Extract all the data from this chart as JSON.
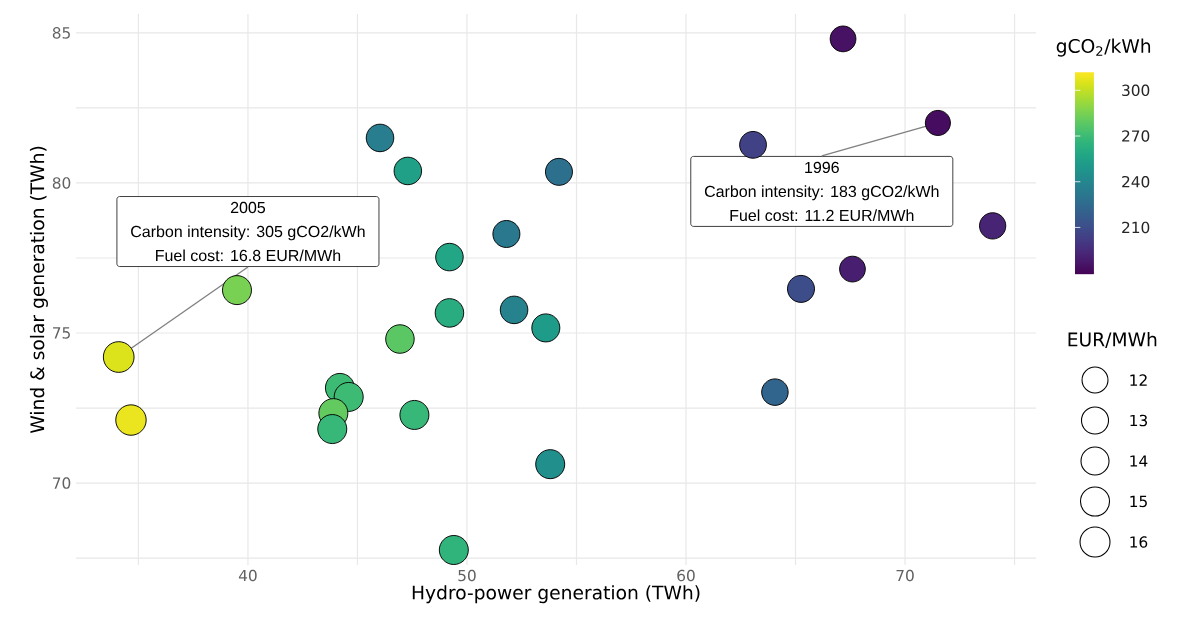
{
  "chart_data": {
    "type": "bubble",
    "xlabel": "Hydro-power generation (TWh)",
    "ylabel": "Wind & solar generation (TWh)",
    "clabel": "gCO$_{2}$/kWh",
    "legend_title": "EUR/MWh",
    "grid": true,
    "marker": "circle",
    "x": [
      34.1,
      34.66,
      39.5,
      46.03,
      47.3,
      54.2,
      51.8,
      49.2,
      49.2,
      52.15,
      53.6,
      46.94,
      44.2,
      44.6,
      43.9,
      43.85,
      47.6,
      53.8,
      49.4,
      67.17,
      71.5,
      63.06,
      74.0,
      67.6,
      65.25,
      64.06
    ],
    "values": [
      74.2,
      72.1,
      76.43,
      81.5,
      80.4,
      80.37,
      78.3,
      77.53,
      75.67,
      75.77,
      75.17,
      74.8,
      73.17,
      72.87,
      72.33,
      71.8,
      72.27,
      70.63,
      67.77,
      84.8,
      82.0,
      81.27,
      78.57,
      77.13,
      76.47,
      73.03
    ],
    "cvalues": [
      305,
      308,
      285,
      235,
      255,
      228,
      232,
      258,
      262,
      238,
      252,
      278,
      270,
      270,
      280,
      268,
      268,
      245,
      266,
      185,
      183,
      205,
      192,
      190,
      210,
      222
    ],
    "sizes": [
      16.8,
      16.5,
      15,
      13.5,
      13.5,
      13,
      13,
      13.5,
      14.5,
      13.5,
      14,
      14.5,
      15,
      15,
      15,
      15,
      15,
      15,
      15,
      11.8,
      11.2,
      12.8,
      12.3,
      11.8,
      13,
      12.5
    ],
    "size_legend": [
      12,
      13,
      14,
      15,
      16
    ],
    "clim": [
      179,
      312
    ],
    "cticks": [
      210,
      240,
      270,
      300
    ],
    "xlim": [
      32.15,
      75.98
    ],
    "ylim": [
      67.27,
      85.63
    ],
    "xticks": [
      {
        "value": 35,
        "label": null
      },
      40,
      {
        "value": 45,
        "label": null
      },
      50,
      {
        "value": 55,
        "label": null
      },
      60,
      {
        "value": 65,
        "label": null
      },
      70,
      {
        "value": 75,
        "label": null
      }
    ],
    "yticks": [
      {
        "value": 67.5,
        "label": null
      },
      70,
      {
        "value": 72.5,
        "label": null
      },
      75,
      {
        "value": 77.5,
        "label": null
      },
      80,
      {
        "value": 82.5,
        "label": null
      },
      85
    ],
    "annotations": [
      "2005",
      "Carbon intensity: 305 gCO2/kWh",
      {
        "text": "Fuel cost: 16.8 EUR/MWh",
        "x": 34.1,
        "y": 74.2
      },
      {
        "text": "1996",
        "x": 71.5,
        "y": 82.0
      },
      "Carbon intensity: 183 gCO2/kWh",
      "Fuel cost: 11.2 EUR/MWh"
    ]
  }
}
